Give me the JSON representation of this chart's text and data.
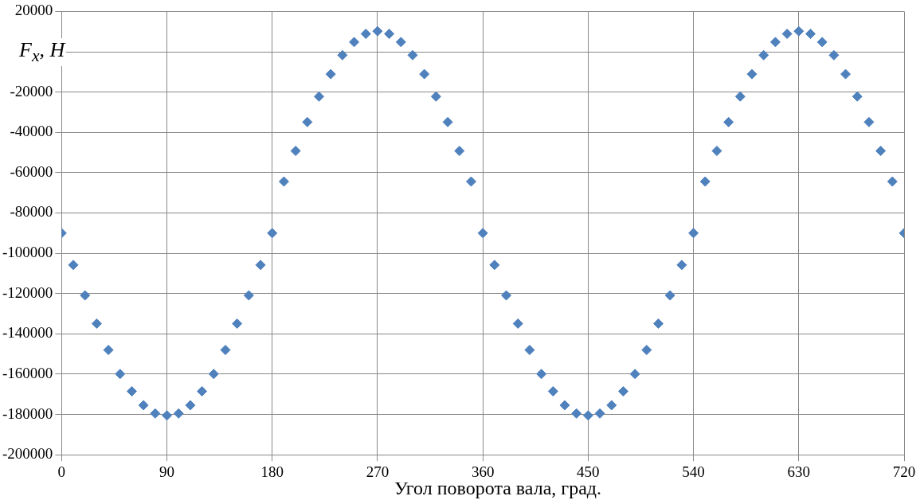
{
  "chart_data": {
    "type": "scatter",
    "xlabel": "Угол поворота вала, град.",
    "ylabel": "F$_{x}$, H",
    "x": [
      0,
      10,
      20,
      30,
      40,
      50,
      60,
      70,
      80,
      90,
      100,
      110,
      120,
      130,
      140,
      150,
      160,
      170,
      180,
      190,
      200,
      210,
      220,
      230,
      240,
      250,
      260,
      270,
      280,
      290,
      300,
      310,
      320,
      330,
      340,
      350,
      360,
      370,
      380,
      390,
      400,
      410,
      420,
      430,
      440,
      450,
      460,
      470,
      480,
      490,
      500,
      510,
      520,
      530,
      540,
      550,
      560,
      570,
      580,
      590,
      600,
      610,
      620,
      630,
      640,
      650,
      660,
      670,
      680,
      690,
      700,
      710,
      720
    ],
    "series": [
      {
        "color": "#4f81bd",
        "values": [
          -90000,
          -105800,
          -120900,
          -134900,
          -148000,
          -159900,
          -168500,
          -175400,
          -179500,
          -180500,
          -179500,
          -175400,
          -168500,
          -159900,
          -148000,
          -134900,
          -120900,
          -105800,
          -90000,
          -64400,
          -49200,
          -34900,
          -22200,
          -11100,
          -1700,
          4800,
          8900,
          10200,
          8900,
          4800,
          -1700,
          -11100,
          -22200,
          -34900,
          -49200,
          -64400,
          -90000,
          -105800,
          -120900,
          -134900,
          -148000,
          -159900,
          -168500,
          -175400,
          -179500,
          -180500,
          -179500,
          -175400,
          -168500,
          -159900,
          -148000,
          -134900,
          -120900,
          -105800,
          -90000,
          -64400,
          -49200,
          -34900,
          -22200,
          -11100,
          -1700,
          4800,
          8900,
          10200,
          8900,
          4800,
          -1700,
          -11100,
          -22200,
          -34900,
          -49200,
          -64400,
          -90000
        ]
      }
    ],
    "xlim": [
      0,
      720
    ],
    "xticks": [
      0,
      90,
      180,
      270,
      360,
      450,
      540,
      630,
      720
    ],
    "ylim": [
      -200000,
      20000
    ],
    "yticks": [
      -200000,
      -180000,
      -160000,
      -140000,
      -120000,
      -100000,
      -80000,
      -60000,
      -40000,
      -20000,
      {
        "value": 0,
        "label": null
      },
      20000
    ],
    "grid": true,
    "marker": "diamond",
    "legend": false
  }
}
